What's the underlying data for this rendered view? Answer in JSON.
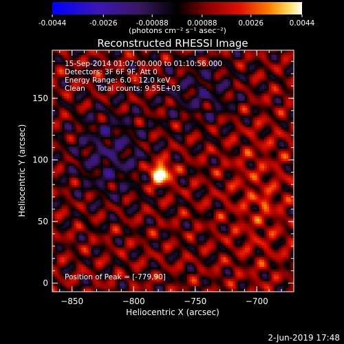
{
  "colorbar": {
    "ticks": [
      "-0.0044",
      "-0.0026",
      "-0.00088",
      "0.00088",
      "0.0026",
      "0.0044"
    ],
    "unit_label": "(photons cm⁻² s⁻¹ asec⁻²)",
    "vmin": -0.0044,
    "vmax": 0.0044,
    "colormap": "blue-purple-black-red-orange-yellow-white"
  },
  "plot": {
    "title": "Reconstructed RHESSI Image",
    "info_lines": [
      "15-Sep-2014 01:07:00.000 to 01:10:56.000",
      "Detectors: 3F 6F 9F, Att 0",
      "Energy Range: 6.0 - 12.0 keV",
      "Clean     Total counts: 9.55E+03"
    ],
    "peak_label": "Position of Peak = [-779,90]",
    "xlabel": "Heliocentric X (arcsec)",
    "ylabel": "Heliocentric Y (arcsec)"
  },
  "footer": {
    "date": "2-Jun-2019 17:48"
  },
  "chart_data": {
    "type": "heatmap",
    "title": "Reconstructed RHESSI Image",
    "xlabel": "Heliocentric X (arcsec)",
    "ylabel": "Heliocentric Y (arcsec)",
    "xlim": [
      -866,
      -670
    ],
    "ylim": [
      -7,
      189
    ],
    "xticks": [
      -850,
      -800,
      -750,
      -700
    ],
    "yticks": [
      0,
      50,
      100,
      150
    ],
    "peak": {
      "x": -779,
      "y": 90
    },
    "colorbar_range": [
      -0.0044,
      0.0044
    ]
  }
}
